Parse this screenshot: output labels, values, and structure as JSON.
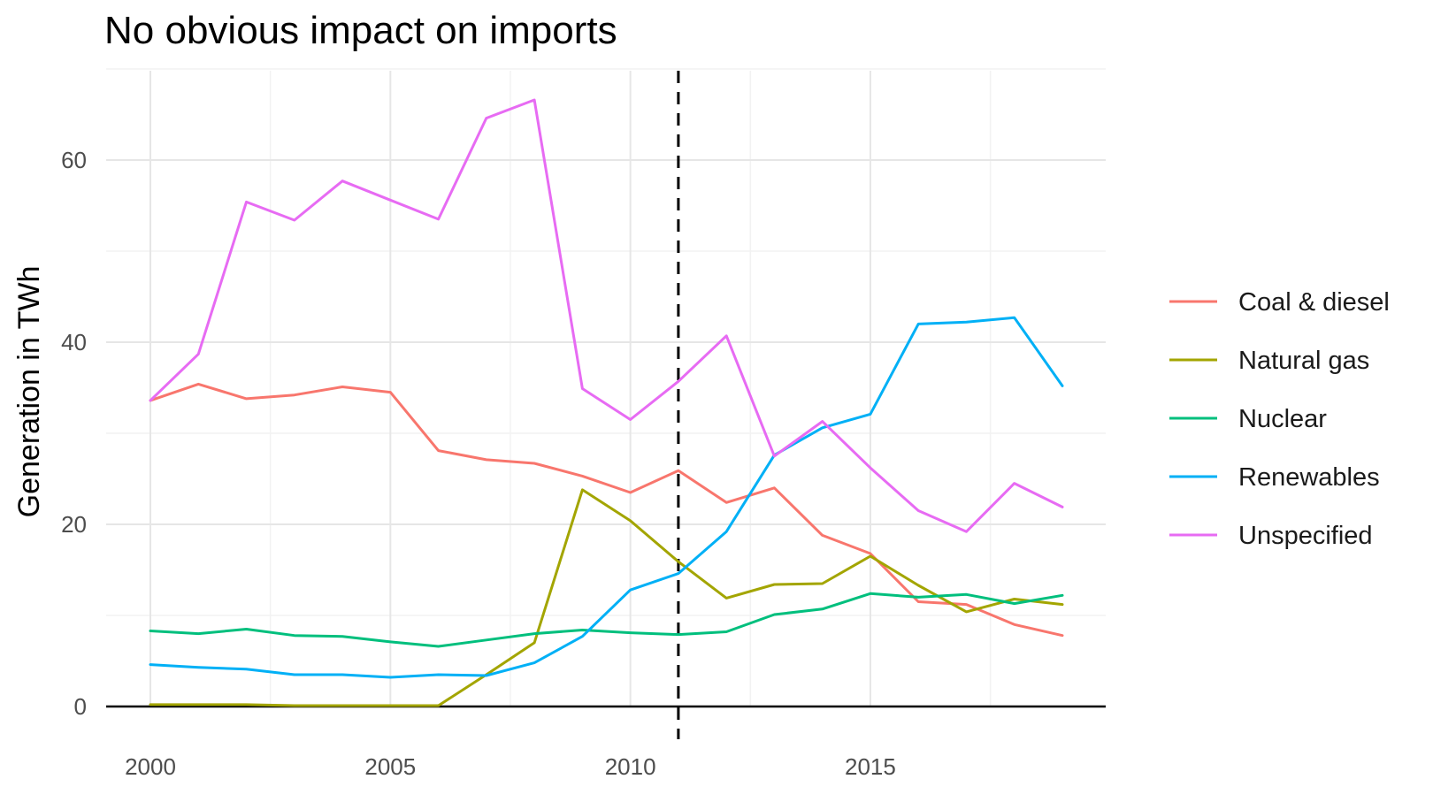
{
  "chart_data": {
    "type": "line",
    "title": "No obvious impact on imports",
    "xlabel": "",
    "ylabel": "Generation in TWh",
    "x": [
      2000,
      2001,
      2002,
      2003,
      2004,
      2005,
      2006,
      2007,
      2008,
      2009,
      2010,
      2011,
      2012,
      2013,
      2014,
      2015,
      2016,
      2017,
      2018,
      2019
    ],
    "xlim": [
      2000,
      2019
    ],
    "ylim": [
      0,
      70
    ],
    "x_ticks": [
      2000,
      2005,
      2010,
      2015
    ],
    "y_ticks": [
      0,
      20,
      40,
      60
    ],
    "grid": true,
    "legend_position": "right",
    "reference_line": {
      "x": 2011,
      "style": "dashed",
      "color": "#000000"
    },
    "series": [
      {
        "name": "Coal & diesel",
        "color": "#F8766D",
        "values": [
          33.6,
          35.4,
          33.8,
          34.2,
          35.1,
          34.5,
          28.1,
          27.1,
          26.7,
          25.3,
          23.5,
          25.9,
          22.4,
          24.0,
          18.8,
          16.8,
          11.5,
          11.2,
          9.0,
          7.8
        ]
      },
      {
        "name": "Natural gas",
        "color": "#A3A500",
        "values": [
          0.2,
          0.2,
          0.2,
          0.1,
          0.1,
          0.1,
          0.1,
          3.5,
          7.0,
          23.8,
          20.4,
          15.9,
          11.9,
          13.4,
          13.5,
          16.5,
          13.3,
          10.4,
          11.8,
          11.2
        ]
      },
      {
        "name": "Nuclear",
        "color": "#00BF7D",
        "values": [
          8.3,
          8.0,
          8.5,
          7.8,
          7.7,
          7.1,
          6.6,
          7.3,
          8.0,
          8.4,
          8.1,
          7.9,
          8.2,
          10.1,
          10.7,
          12.4,
          12.0,
          12.3,
          11.3,
          12.2
        ]
      },
      {
        "name": "Renewables",
        "color": "#00B0F6",
        "values": [
          4.6,
          4.3,
          4.1,
          3.5,
          3.5,
          3.2,
          3.5,
          3.4,
          4.8,
          7.7,
          12.8,
          14.6,
          19.2,
          27.6,
          30.6,
          32.1,
          42.0,
          42.2,
          42.7,
          35.2
        ]
      },
      {
        "name": "Unspecified",
        "color": "#E76BF3",
        "values": [
          33.6,
          38.7,
          55.4,
          53.4,
          57.7,
          55.6,
          53.5,
          64.6,
          66.6,
          34.9,
          31.5,
          35.7,
          40.7,
          27.5,
          31.3,
          26.2,
          21.5,
          19.2,
          24.5,
          21.9
        ]
      }
    ]
  }
}
